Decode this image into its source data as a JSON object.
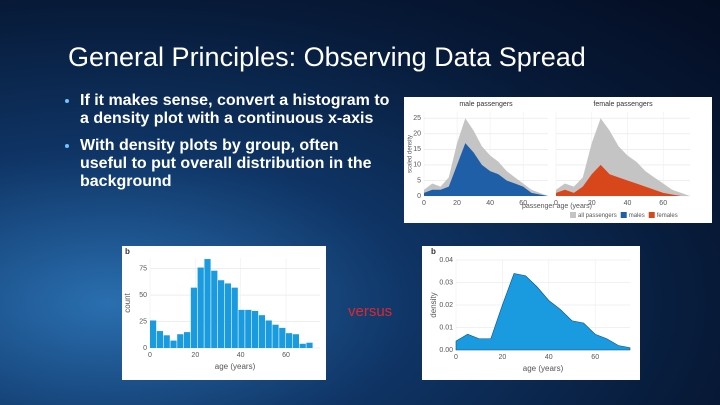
{
  "slide": {
    "title": "General Principles: Observing Data Spread",
    "bullets": [
      "If it makes sense, convert a histogram to a density plot with a continuous x-axis",
      "With density plots by group, often useful to put overall distribution in the background"
    ],
    "versus": "versus"
  },
  "chart_data": [
    {
      "type": "area",
      "facets": [
        "male passengers",
        "female passengers"
      ],
      "xlabel": "passenger age (years)",
      "ylabel": "scaled density",
      "x": [
        0,
        5,
        10,
        15,
        20,
        25,
        30,
        35,
        40,
        45,
        50,
        55,
        60,
        65,
        70,
        75
      ],
      "series": [
        {
          "name": "all passengers",
          "color": "#c4c4c4",
          "values": [
            2,
            4,
            3,
            6,
            17,
            25,
            21,
            16,
            13,
            11,
            8,
            6,
            4,
            2,
            1,
            0
          ]
        },
        {
          "name": "males",
          "color": "#1f5fa8",
          "facet": 0,
          "values": [
            1,
            2,
            2,
            3,
            10,
            17,
            14,
            10,
            8,
            7,
            5,
            4,
            3,
            1,
            0.5,
            0
          ]
        },
        {
          "name": "females",
          "color": "#d8461c",
          "facet": 1,
          "values": [
            1,
            2,
            1,
            3,
            7,
            10,
            7,
            6,
            5,
            4,
            3,
            2,
            1,
            0.5,
            0,
            0
          ]
        }
      ],
      "xlim": [
        0,
        75
      ],
      "xticks": [
        0,
        20,
        40,
        60
      ],
      "ylim": [
        0,
        27
      ],
      "yticks": [
        0,
        5,
        10,
        15,
        20,
        25
      ],
      "grid": true
    },
    {
      "type": "histogram",
      "panel_label": "b",
      "xlabel": "age (years)",
      "ylabel": "count",
      "color": "#1a9be0",
      "bins": [
        0,
        3,
        6,
        9,
        12,
        15,
        18,
        21,
        24,
        27,
        30,
        33,
        36,
        39,
        42,
        45,
        48,
        51,
        54,
        57,
        60,
        63,
        66,
        69,
        72
      ],
      "values": [
        26,
        16,
        12,
        7,
        13,
        15,
        57,
        76,
        84,
        73,
        64,
        61,
        57,
        36,
        36,
        35,
        31,
        26,
        22,
        19,
        14,
        13,
        4,
        5
      ],
      "xlim": [
        0,
        75
      ],
      "xticks": [
        0,
        20,
        40,
        60
      ],
      "ylim": [
        0,
        85
      ],
      "yticks": [
        0,
        25,
        50,
        75
      ],
      "grid": true
    },
    {
      "type": "density",
      "panel_label": "b",
      "xlabel": "age (years)",
      "ylabel": "density",
      "color": "#1a9be0",
      "x": [
        0,
        5,
        10,
        15,
        20,
        25,
        30,
        35,
        40,
        45,
        50,
        55,
        60,
        65,
        70,
        75
      ],
      "values": [
        0.004,
        0.007,
        0.005,
        0.005,
        0.02,
        0.034,
        0.033,
        0.028,
        0.022,
        0.018,
        0.013,
        0.012,
        0.007,
        0.005,
        0.002,
        0.001
      ],
      "xlim": [
        0,
        75
      ],
      "xticks": [
        0,
        20,
        40,
        60
      ],
      "ylim": [
        0,
        0.04
      ],
      "yticks": [
        {
          "value": 0,
          "label": "0.00"
        },
        {
          "value": 0.01,
          "label": "0.01"
        },
        {
          "value": 0.02,
          "label": "0.02"
        },
        {
          "value": 0.03,
          "label": "0.03"
        },
        {
          "value": 0.04,
          "label": "0.04"
        }
      ],
      "grid": true
    }
  ]
}
